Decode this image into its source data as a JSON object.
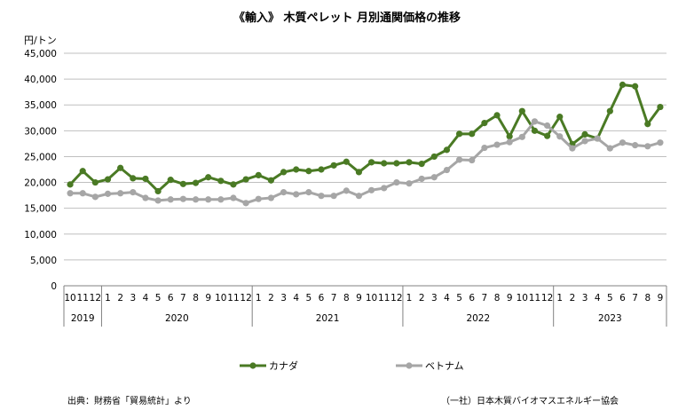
{
  "title": "《輸入》 木質ペレット 月別通関価格の推移",
  "unit_label": "円/トン",
  "source_note": "出典：財務省「貿易統計」より",
  "org_note": "（一社）日本木質バイオマスエネルギー協会",
  "colors": {
    "canada": "#4a7a24",
    "vietnam": "#a6a6a6",
    "grid": "#bfbfbf",
    "axis": "#808080"
  },
  "chart_data": {
    "type": "line",
    "ylim": [
      0,
      45000
    ],
    "yticks": [
      0,
      5000,
      10000,
      15000,
      20000,
      25000,
      30000,
      35000,
      40000,
      45000
    ],
    "ytick_labels": [
      "0",
      "5,000",
      "10,000",
      "15,000",
      "20,000",
      "25,000",
      "30,000",
      "35,000",
      "40,000",
      "45,000"
    ],
    "grid": true,
    "legend": "bottom",
    "x": [
      "10",
      "11",
      "12",
      "1",
      "2",
      "3",
      "4",
      "5",
      "6",
      "7",
      "8",
      "9",
      "10",
      "11",
      "12",
      "1",
      "2",
      "3",
      "4",
      "5",
      "6",
      "7",
      "8",
      "9",
      "10",
      "11",
      "12",
      "1",
      "2",
      "3",
      "4",
      "5",
      "6",
      "7",
      "8",
      "9",
      "10",
      "11",
      "12",
      "1",
      "2",
      "3",
      "4",
      "5",
      "6",
      "7",
      "8",
      "9"
    ],
    "years": [
      {
        "label": "2019",
        "start": 0,
        "end": 2
      },
      {
        "label": "2020",
        "start": 3,
        "end": 14
      },
      {
        "label": "2021",
        "start": 15,
        "end": 26
      },
      {
        "label": "2022",
        "start": 27,
        "end": 38
      },
      {
        "label": "2023",
        "start": 39,
        "end": 47
      }
    ],
    "series": [
      {
        "name": "カナダ",
        "values": [
          19600,
          22200,
          20000,
          20600,
          22800,
          20800,
          20700,
          18300,
          20500,
          19700,
          19900,
          21000,
          20300,
          19600,
          20600,
          21400,
          20400,
          22000,
          22500,
          22200,
          22500,
          23300,
          24000,
          22000,
          23900,
          23700,
          23700,
          23900,
          23600,
          25000,
          26300,
          29400,
          29400,
          31500,
          33000,
          28900,
          33800,
          30000,
          29000,
          32700,
          27400,
          29300,
          28500,
          33800,
          38900,
          38600,
          31300,
          34600
        ]
      },
      {
        "name": "ベトナム",
        "values": [
          17900,
          17900,
          17200,
          17800,
          17900,
          18100,
          17000,
          16500,
          16700,
          16800,
          16700,
          16700,
          16700,
          17000,
          16000,
          16800,
          17000,
          18100,
          17700,
          18100,
          17400,
          17400,
          18400,
          17400,
          18500,
          18900,
          20000,
          19800,
          20700,
          21000,
          22400,
          24400,
          24300,
          26700,
          27300,
          27800,
          28800,
          31800,
          31000,
          28900,
          26600,
          28000,
          28500,
          26600,
          27700,
          27200,
          27000,
          27700
        ]
      }
    ]
  }
}
